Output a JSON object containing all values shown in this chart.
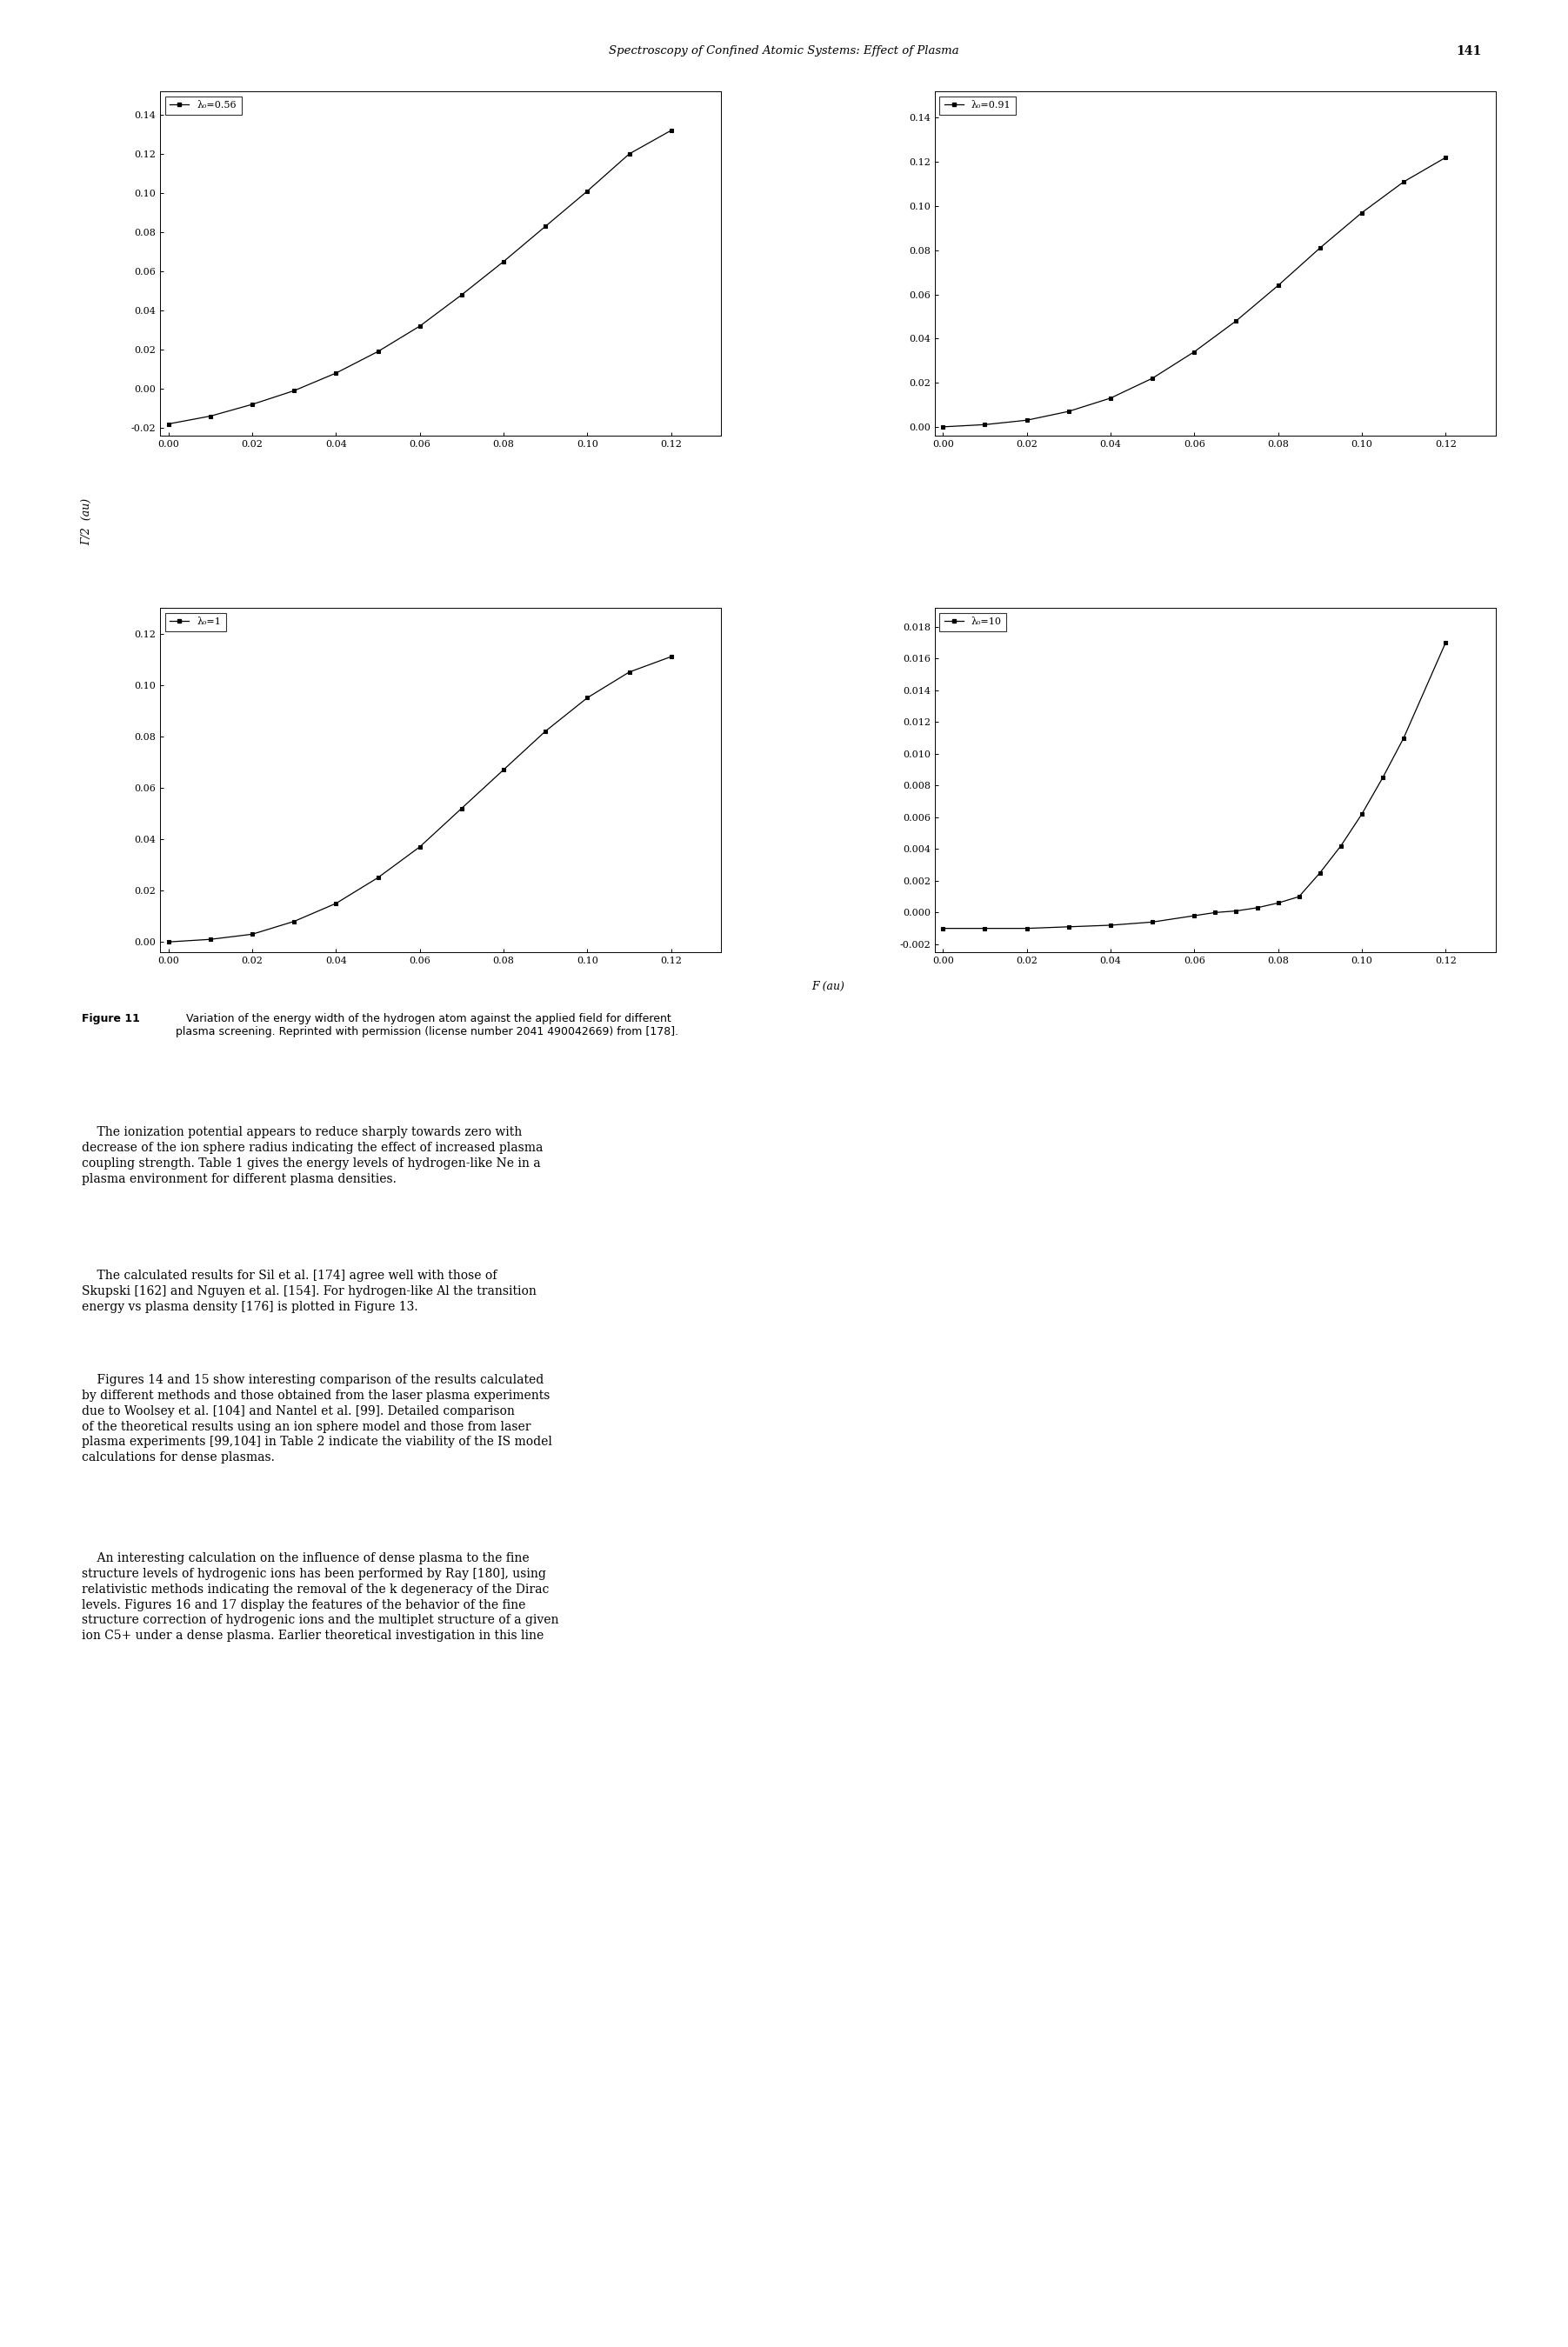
{
  "header_text": "Spectroscopy of Confined Atomic Systems: Effect of Plasma",
  "header_page": "141",
  "page_bg": "#ffffff",
  "ylabel": "Γ/2  (au)",
  "xlabel": "F (au)",
  "subplots": [
    {
      "label": "λ₀=0.56",
      "xlim": [
        -0.002,
        0.132
      ],
      "ylim": [
        -0.024,
        0.152
      ],
      "yticks": [
        -0.02,
        0.0,
        0.02,
        0.04,
        0.06,
        0.08,
        0.1,
        0.12,
        0.14
      ],
      "xticks": [
        0.0,
        0.02,
        0.04,
        0.06,
        0.08,
        0.1,
        0.12
      ],
      "x": [
        0.0,
        0.01,
        0.02,
        0.03,
        0.04,
        0.05,
        0.06,
        0.07,
        0.08,
        0.09,
        0.1,
        0.11,
        0.12
      ],
      "y": [
        -0.018,
        -0.014,
        -0.008,
        -0.001,
        0.008,
        0.019,
        0.032,
        0.048,
        0.065,
        0.083,
        0.101,
        0.12,
        0.132
      ]
    },
    {
      "label": "λ₀=0.91",
      "xlim": [
        -0.002,
        0.132
      ],
      "ylim": [
        -0.004,
        0.152
      ],
      "yticks": [
        0.0,
        0.02,
        0.04,
        0.06,
        0.08,
        0.1,
        0.12,
        0.14
      ],
      "xticks": [
        0.0,
        0.02,
        0.04,
        0.06,
        0.08,
        0.1,
        0.12
      ],
      "x": [
        0.0,
        0.01,
        0.02,
        0.03,
        0.04,
        0.05,
        0.06,
        0.07,
        0.08,
        0.09,
        0.1,
        0.11,
        0.12
      ],
      "y": [
        0.0,
        0.001,
        0.003,
        0.007,
        0.013,
        0.022,
        0.034,
        0.048,
        0.064,
        0.081,
        0.097,
        0.111,
        0.122
      ]
    },
    {
      "label": "λ₀=1",
      "xlim": [
        -0.002,
        0.132
      ],
      "ylim": [
        -0.004,
        0.13
      ],
      "yticks": [
        0.0,
        0.02,
        0.04,
        0.06,
        0.08,
        0.1,
        0.12
      ],
      "xticks": [
        0.0,
        0.02,
        0.04,
        0.06,
        0.08,
        0.1,
        0.12
      ],
      "x": [
        0.0,
        0.01,
        0.02,
        0.03,
        0.04,
        0.05,
        0.06,
        0.07,
        0.08,
        0.09,
        0.1,
        0.11,
        0.12
      ],
      "y": [
        0.0,
        0.001,
        0.003,
        0.008,
        0.015,
        0.025,
        0.037,
        0.052,
        0.067,
        0.082,
        0.095,
        0.105,
        0.111
      ]
    },
    {
      "label": "λ₀=10",
      "xlim": [
        -0.002,
        0.132
      ],
      "ylim": [
        -0.0025,
        0.0192
      ],
      "yticks": [
        -0.002,
        0.0,
        0.002,
        0.004,
        0.006,
        0.008,
        0.01,
        0.012,
        0.014,
        0.016,
        0.018
      ],
      "xticks": [
        0.0,
        0.02,
        0.04,
        0.06,
        0.08,
        0.1,
        0.12
      ],
      "x": [
        0.0,
        0.01,
        0.02,
        0.03,
        0.04,
        0.05,
        0.06,
        0.065,
        0.07,
        0.075,
        0.08,
        0.085,
        0.09,
        0.095,
        0.1,
        0.105,
        0.11,
        0.12
      ],
      "y": [
        -0.001,
        -0.001,
        -0.001,
        -0.0009,
        -0.0008,
        -0.0006,
        -0.0002,
        0.0,
        0.0001,
        0.0003,
        0.0006,
        0.001,
        0.0025,
        0.0042,
        0.0062,
        0.0085,
        0.011,
        0.017
      ]
    }
  ],
  "caption_bold": "Figure 11",
  "caption_normal": "   Variation of the energy width of the hydrogen atom against the applied field for different\nplasma screening. Reprinted with permission (license number 2041 490042669) from [178].",
  "body_text_p1": "    The ionization potential appears to reduce sharply towards zero with\ndecrease of the ion sphere radius indicating the effect of increased plasma\ncoupling strength. Table 1 gives the energy levels of hydrogen-like Ne in a\nplasma environment for different plasma densities.",
  "body_text_p2": "    The calculated results for Sil et al. [174] agree well with those of\nSkupski [162] and Nguyen et al. [154]. For hydrogen-like Al the transition\nenergy vs plasma density [176] is plotted in Figure 13.",
  "body_text_p3": "    Figures 14 and 15 show interesting comparison of the results calculated\nby different methods and those obtained from the laser plasma experiments\ndue to Woolsey et al. [104] and Nantel et al. [99]. Detailed comparison\nof the theoretical results using an ion sphere model and those from laser\nplasma experiments [99,104] in Table 2 indicate the viability of the IS model\ncalculations for dense plasmas.",
  "body_text_p4": "    An interesting calculation on the influence of dense plasma to the fine\nstructure levels of hydrogenic ions has been performed by Ray [180], using\nrelativistic methods indicating the removal of the k degeneracy of the Dirac\nlevels. Figures 16 and 17 display the features of the behavior of the fine\nstructure correction of hydrogenic ions and the multiplet structure of a given\nion C5+ under a dense plasma. Earlier theoretical investigation in this line"
}
